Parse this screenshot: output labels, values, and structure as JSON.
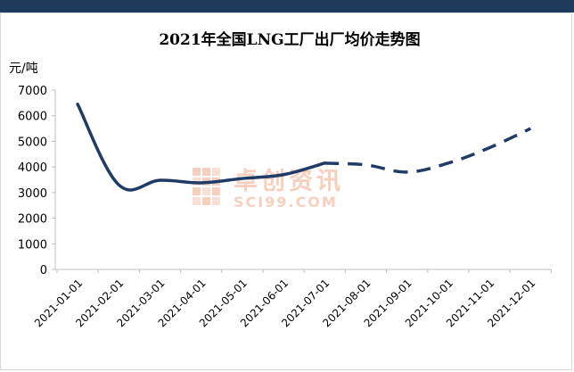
{
  "chart_data": {
    "type": "line",
    "title": "2021年全国LNG工厂出厂均价走势图",
    "ylabel": "元/吨",
    "xlabel": "",
    "ylim": [
      0,
      7000
    ],
    "yticks": [
      0,
      1000,
      2000,
      3000,
      4000,
      5000,
      6000,
      7000
    ],
    "categories": [
      "2021-01-01",
      "2021-02-01",
      "2021-03-01",
      "2021-04-01",
      "2021-05-01",
      "2021-06-01",
      "2021-07-01",
      "2021-08-01",
      "2021-09-01",
      "2021-10-01",
      "2021-11-01",
      "2021-12-01"
    ],
    "grid": false,
    "legend": "none",
    "series": [
      {
        "style": "solid",
        "color": "#1f3b66",
        "points": [
          {
            "x": "2021-01-01",
            "y": 6450
          },
          {
            "x": "2021-02-01",
            "y": 3300
          },
          {
            "x": "2021-03-01",
            "y": 3480
          },
          {
            "x": "2021-04-01",
            "y": 3380
          },
          {
            "x": "2021-05-01",
            "y": 3550
          },
          {
            "x": "2021-06-01",
            "y": 3700
          },
          {
            "x": "2021-07-01",
            "y": 4150
          }
        ]
      },
      {
        "style": "dashed",
        "color": "#1f3b66",
        "points": [
          {
            "x": "2021-07-01",
            "y": 4150
          },
          {
            "x": "2021-08-01",
            "y": 4080
          },
          {
            "x": "2021-09-01",
            "y": 3800
          },
          {
            "x": "2021-10-01",
            "y": 4150
          },
          {
            "x": "2021-11-01",
            "y": 4750
          },
          {
            "x": "2021-12-01",
            "y": 5500
          }
        ]
      }
    ]
  },
  "watermark": {
    "brand": "卓创资讯",
    "domain": "SCI99.COM"
  },
  "colors": {
    "top_bar": "#1f3b5c",
    "line": "#1f3b66",
    "axis": "#bfbfbf",
    "watermark": "#f2a98a"
  }
}
